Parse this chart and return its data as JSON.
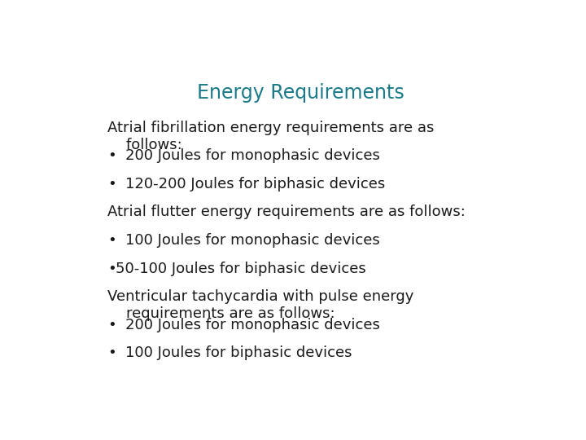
{
  "title": "Energy Requirements",
  "title_color": "#1a7a8a",
  "title_fontsize": 17,
  "title_bold": false,
  "background_color": "#ffffff",
  "text_color": "#1a1a1a",
  "body_fontsize": 13,
  "lines": [
    {
      "text": "Atrial fibrillation energy requirements are as\n    follows:",
      "bullet": false,
      "tight_bullet": false
    },
    {
      "text": "200 Joules for monophasic devices",
      "bullet": true,
      "tight_bullet": false
    },
    {
      "text": "120-200 Joules for biphasic devices",
      "bullet": true,
      "tight_bullet": false
    },
    {
      "text": "Atrial flutter energy requirements are as follows:",
      "bullet": false,
      "tight_bullet": false
    },
    {
      "text": "100 Joules for monophasic devices",
      "bullet": true,
      "tight_bullet": false
    },
    {
      "text": "50-100 Joules for biphasic devices",
      "bullet": true,
      "tight_bullet": true
    },
    {
      "text": "Ventricular tachycardia with pulse energy\n    requirements are as follows:",
      "bullet": false,
      "tight_bullet": false
    },
    {
      "text": "200 Joules for monophasic devices",
      "bullet": true,
      "tight_bullet": false
    },
    {
      "text": "100 Joules for biphasic devices",
      "bullet": true,
      "tight_bullet": false
    }
  ]
}
